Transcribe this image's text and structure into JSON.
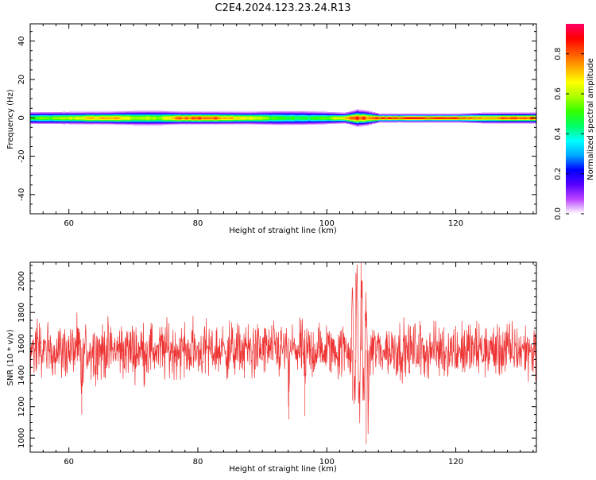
{
  "title": "C2E4.2024.123.23.24.R13",
  "colors": {
    "signal": "#ee3333",
    "axis": "#000000"
  },
  "chart_data": [
    {
      "type": "heatmap",
      "panel": "spectrogram",
      "xlabel": "Height of straight line (km)",
      "ylabel": "Frequency (Hz)",
      "xlim": [
        54,
        132.5
      ],
      "ylim": [
        -50,
        49
      ],
      "xticks": [
        60,
        80,
        100,
        120
      ],
      "yticks": [
        -40,
        -20,
        0,
        20,
        40
      ],
      "grid": false,
      "colorbar": {
        "label": "Normalized spectral amplitude",
        "range": [
          0,
          0.95
        ],
        "ticks": [
          0.0,
          0.2,
          0.4,
          0.6,
          0.8
        ],
        "tick_labels": [
          "0.0",
          "0.2",
          "0.4",
          "0.6",
          "0.8"
        ],
        "colormap": [
          "#ffffff",
          "#bb44ff",
          "#5500ff",
          "#0000ff",
          "#00aaff",
          "#00ffff",
          "#00ff66",
          "#33ff00",
          "#aaff00",
          "#ffff00",
          "#ffaa00",
          "#ff5500",
          "#ff0000",
          "#ff0066"
        ]
      },
      "band_profile": [
        {
          "x": 54,
          "halfwidth_hz": 3,
          "peak": 0.55
        },
        {
          "x": 58,
          "halfwidth_hz": 3,
          "peak": 0.6
        },
        {
          "x": 62,
          "halfwidth_hz": 3,
          "peak": 0.72
        },
        {
          "x": 66,
          "halfwidth_hz": 3,
          "peak": 0.8
        },
        {
          "x": 70,
          "halfwidth_hz": 3.5,
          "peak": 0.65
        },
        {
          "x": 74,
          "halfwidth_hz": 3.5,
          "peak": 0.62
        },
        {
          "x": 77,
          "halfwidth_hz": 3,
          "peak": 0.85
        },
        {
          "x": 80,
          "halfwidth_hz": 3,
          "peak": 0.88
        },
        {
          "x": 84,
          "halfwidth_hz": 3,
          "peak": 0.82
        },
        {
          "x": 88,
          "halfwidth_hz": 3,
          "peak": 0.7
        },
        {
          "x": 92,
          "halfwidth_hz": 3.5,
          "peak": 0.55
        },
        {
          "x": 96,
          "halfwidth_hz": 3.5,
          "peak": 0.5
        },
        {
          "x": 100,
          "halfwidth_hz": 3,
          "peak": 0.58
        },
        {
          "x": 102.5,
          "halfwidth_hz": 2.5,
          "peak": 0.75
        },
        {
          "x": 104.5,
          "halfwidth_hz": 4,
          "peak": 0.9
        },
        {
          "x": 106,
          "halfwidth_hz": 3.5,
          "peak": 0.85
        },
        {
          "x": 108,
          "halfwidth_hz": 2,
          "peak": 0.9
        },
        {
          "x": 112,
          "halfwidth_hz": 2,
          "peak": 0.93
        },
        {
          "x": 116,
          "halfwidth_hz": 2,
          "peak": 0.93
        },
        {
          "x": 120,
          "halfwidth_hz": 2,
          "peak": 0.9
        },
        {
          "x": 124,
          "halfwidth_hz": 2.5,
          "peak": 0.8
        },
        {
          "x": 128,
          "halfwidth_hz": 2.5,
          "peak": 0.86
        },
        {
          "x": 132.5,
          "halfwidth_hz": 2.5,
          "peak": 0.9
        }
      ]
    },
    {
      "type": "line",
      "panel": "snr",
      "xlabel": "Height of straight line (km)",
      "ylabel": "SNR (10 * v/v)",
      "xlim": [
        54,
        132.5
      ],
      "ylim": [
        910,
        2120
      ],
      "xticks": [
        60,
        80,
        100,
        120
      ],
      "yticks": [
        1000,
        1200,
        1400,
        1600,
        1800,
        2000
      ],
      "grid": false,
      "series": [
        {
          "baseline_mean": 1560,
          "noise_spread": [
            1250,
            1880
          ],
          "x_step": 0.05,
          "features": [
            {
              "x": 62.0,
              "y": 1150
            },
            {
              "x": 94.1,
              "y": 1120
            },
            {
              "x": 96.6,
              "y": 1140
            },
            {
              "x": 104.0,
              "y": 1240
            },
            {
              "x": 104.5,
              "y": 2050
            },
            {
              "x": 105.3,
              "y": 2120
            },
            {
              "x": 105.5,
              "y": 2000
            },
            {
              "x": 106.1,
              "y": 960
            },
            {
              "x": 106.4,
              "y": 1180
            }
          ]
        }
      ]
    }
  ]
}
